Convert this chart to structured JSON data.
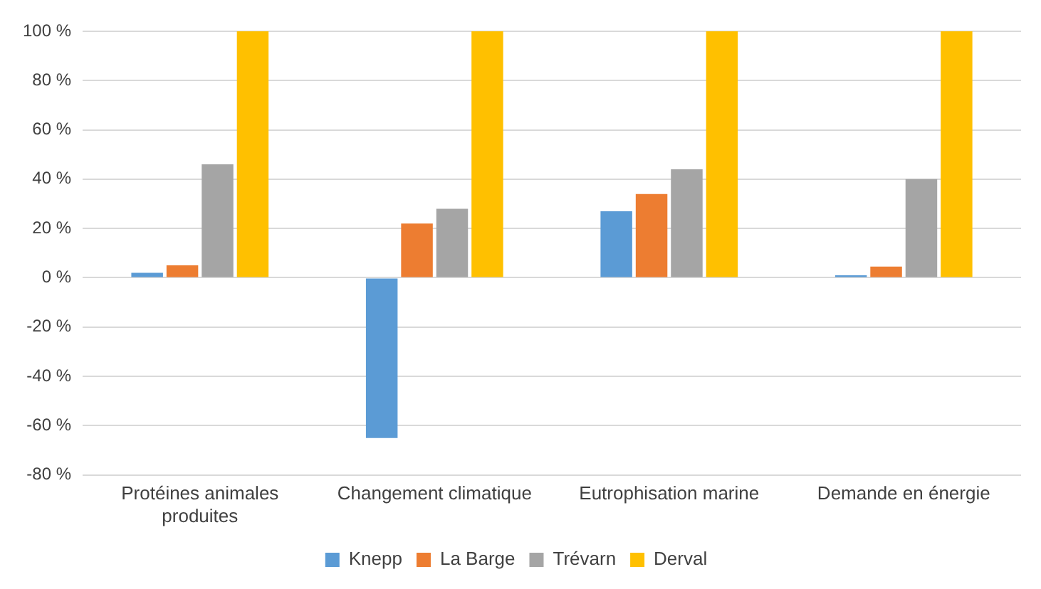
{
  "chart_data": {
    "type": "bar",
    "categories": [
      "Protéines animales produites",
      "Changement climatique",
      "Eutrophisation marine",
      "Demande en énergie"
    ],
    "series": [
      {
        "name": "Knepp",
        "color": "#5b9bd5",
        "values": [
          2,
          -65,
          27,
          1
        ]
      },
      {
        "name": "La Barge",
        "color": "#ed7d31",
        "values": [
          5,
          22,
          34,
          4.5
        ]
      },
      {
        "name": "Trévarn",
        "color": "#a5a5a5",
        "values": [
          46,
          28,
          44,
          40
        ]
      },
      {
        "name": "Derval",
        "color": "#ffc000",
        "values": [
          100,
          100,
          100,
          100
        ]
      }
    ],
    "ylim": [
      -80,
      100
    ],
    "yticks": [
      {
        "value": -80,
        "label": "-80 %"
      },
      {
        "value": -60,
        "label": "-60 %"
      },
      {
        "value": -40,
        "label": "-40 %"
      },
      {
        "value": -20,
        "label": "-20 %"
      },
      {
        "value": 0,
        "label": "0 %"
      },
      {
        "value": 20,
        "label": "20 %"
      },
      {
        "value": 40,
        "label": "40 %"
      },
      {
        "value": 60,
        "label": "60 %"
      },
      {
        "value": 80,
        "label": "80 %"
      },
      {
        "value": 100,
        "label": "100 %"
      }
    ],
    "grid": "y",
    "legend": "bottom"
  }
}
